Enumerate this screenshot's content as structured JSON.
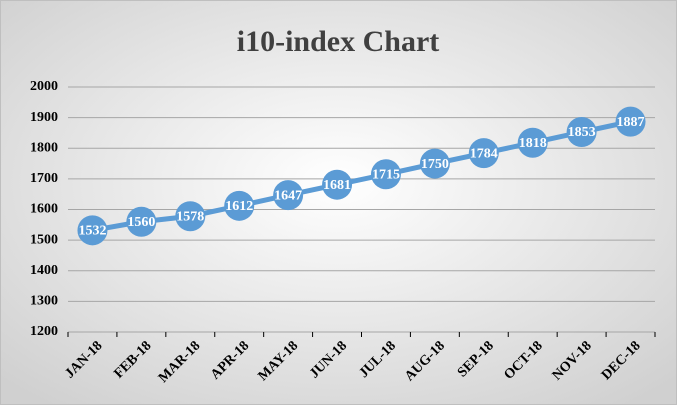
{
  "chart_data": {
    "type": "line",
    "title": "i10-index Chart",
    "categories": [
      "JAN-18",
      "FEB-18",
      "MAR-18",
      "APR-18",
      "MAY-18",
      "JUN-18",
      "JUL-18",
      "AUG-18",
      "SEP-18",
      "OCT-18",
      "NOV-18",
      "DEC-18"
    ],
    "values": [
      1532,
      1560,
      1578,
      1612,
      1647,
      1681,
      1715,
      1750,
      1784,
      1818,
      1853,
      1887
    ],
    "color": "#5b9bd5",
    "ylim": [
      1200,
      2000
    ],
    "yticks": [
      1200,
      1300,
      1400,
      1500,
      1600,
      1700,
      1800,
      1900,
      2000
    ],
    "grid": true
  }
}
